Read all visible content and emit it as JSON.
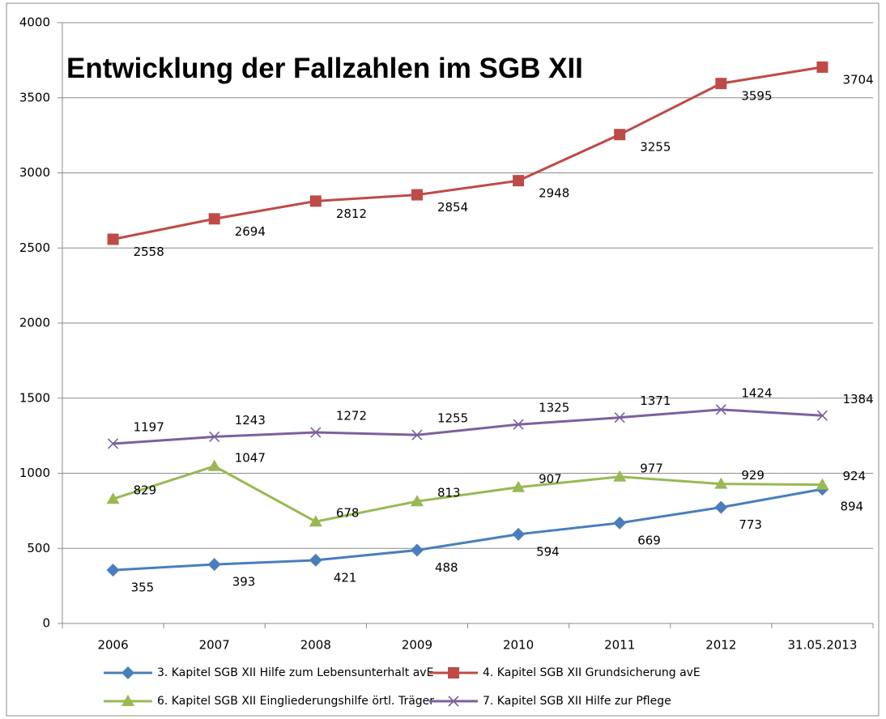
{
  "chart_data": {
    "type": "line",
    "title": "Entwicklung der Fallzahlen im SGB XII",
    "categories": [
      "2006",
      "2007",
      "2008",
      "2009",
      "2010",
      "2011",
      "2012",
      "31.05.2013"
    ],
    "series": [
      {
        "name": "3. Kapitel SGB XII Hilfe zum Lebensunterhalt avE",
        "color": "#4a7ebb",
        "marker": "diamond",
        "values": [
          355,
          393,
          421,
          488,
          594,
          669,
          773,
          894
        ]
      },
      {
        "name": "4. Kapitel SGB XII Grundsicherung avE",
        "color": "#be4b48",
        "marker": "square",
        "values": [
          2558,
          2694,
          2812,
          2854,
          2948,
          3255,
          3595,
          3704
        ]
      },
      {
        "name": "6. Kapitel SGB XII Eingliederungshilfe örtl. Träger",
        "color": "#98b954",
        "marker": "triangle",
        "values": [
          829,
          1047,
          678,
          813,
          907,
          977,
          929,
          924
        ]
      },
      {
        "name": "7. Kapitel SGB XII Hilfe zur Pflege",
        "color": "#7d60a0",
        "marker": "x",
        "values": [
          1197,
          1243,
          1272,
          1255,
          1325,
          1371,
          1424,
          1384
        ]
      }
    ],
    "ylim": [
      0,
      4000
    ],
    "yticks": [
      0,
      500,
      1000,
      1500,
      2000,
      2500,
      3000,
      3500,
      4000
    ],
    "grid": true,
    "legend": "bottom"
  }
}
